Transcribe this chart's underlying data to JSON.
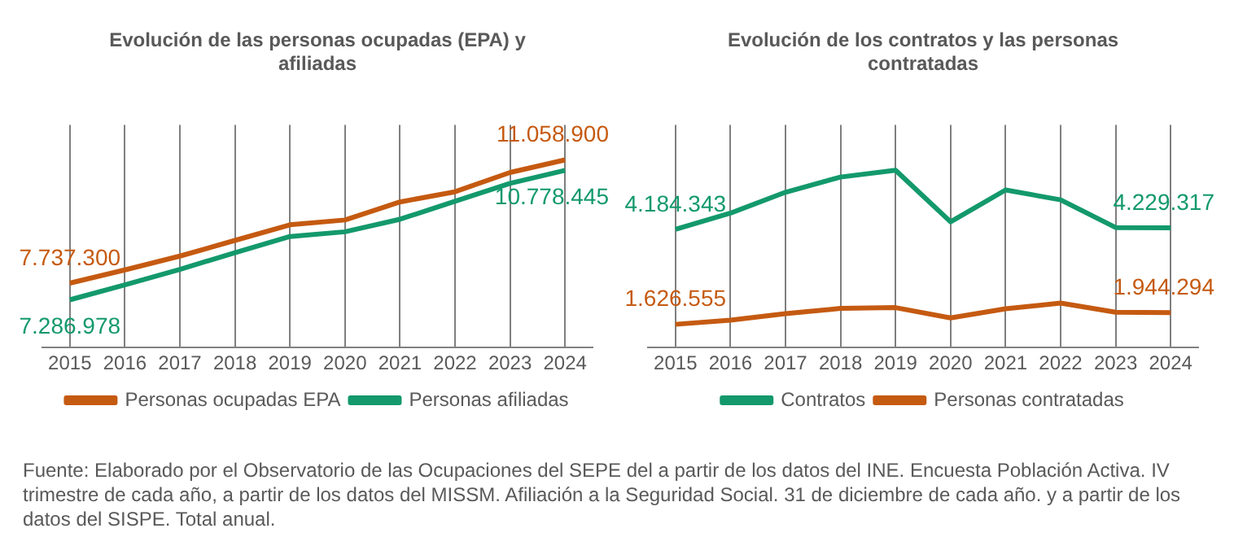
{
  "chart_data": [
    {
      "type": "line",
      "title": "Evolución de las personas ocupadas (EPA) y afiliadas",
      "categories": [
        "2015",
        "2016",
        "2017",
        "2018",
        "2019",
        "2020",
        "2021",
        "2022",
        "2023",
        "2024"
      ],
      "series": [
        {
          "name": "Personas ocupadas EPA",
          "color": "#c55a11",
          "values": [
            7737300,
            8094000,
            8466000,
            8888000,
            9309000,
            9439000,
            9925000,
            10200000,
            10719000,
            11058900
          ],
          "value_labels": [
            "7.737.300",
            null,
            null,
            null,
            null,
            null,
            null,
            null,
            null,
            "11.058.900"
          ]
        },
        {
          "name": "Personas afiliadas",
          "color": "#13996c",
          "values": [
            7286978,
            7689000,
            8108000,
            8558000,
            8993000,
            9121000,
            9459000,
            9942000,
            10425000,
            10778445
          ],
          "value_labels": [
            "7.286.978",
            null,
            null,
            null,
            null,
            null,
            null,
            null,
            null,
            "10.778.445"
          ]
        }
      ],
      "tick_labels": "x",
      "grid": "x",
      "legend": "bottom",
      "marker": "none",
      "line_style": "solid"
    },
    {
      "type": "line",
      "title": "Evolución de los contratos y las personas contratadas",
      "categories": [
        "2015",
        "2016",
        "2017",
        "2018",
        "2019",
        "2020",
        "2021",
        "2022",
        "2023",
        "2024"
      ],
      "series": [
        {
          "name": "Contratos",
          "color": "#13996c",
          "values": [
            4184343,
            4624000,
            5187000,
            5596000,
            5780000,
            4389000,
            5248000,
            4982000,
            4236000,
            4229317
          ],
          "value_labels": [
            "4.184.343",
            null,
            null,
            null,
            null,
            null,
            null,
            null,
            null,
            "4.229.317"
          ]
        },
        {
          "name": "Personas contratadas",
          "color": "#c55a11",
          "values": [
            1626555,
            1739000,
            1913000,
            2056000,
            2077000,
            1800000,
            2046000,
            2199000,
            1954000,
            1944294
          ],
          "value_labels": [
            "1.626.555",
            null,
            null,
            null,
            null,
            null,
            null,
            null,
            null,
            "1.944.294"
          ]
        }
      ],
      "tick_labels": "x",
      "grid": "x",
      "legend": "bottom",
      "marker": "none",
      "line_style": "solid",
      "annotations": [
        "Fuente: Elaborado por el Observatorio de las Ocupaciones del SEPE del a partir de los datos del INE. Encuesta Población Activa. IV trimestre de cada año, a partir de los datos del MISSM. Afiliación a la Seguridad Social. 31 de diciembre de cada año. y a partir de los datos del SISPE. Total anual."
      ]
    }
  ]
}
